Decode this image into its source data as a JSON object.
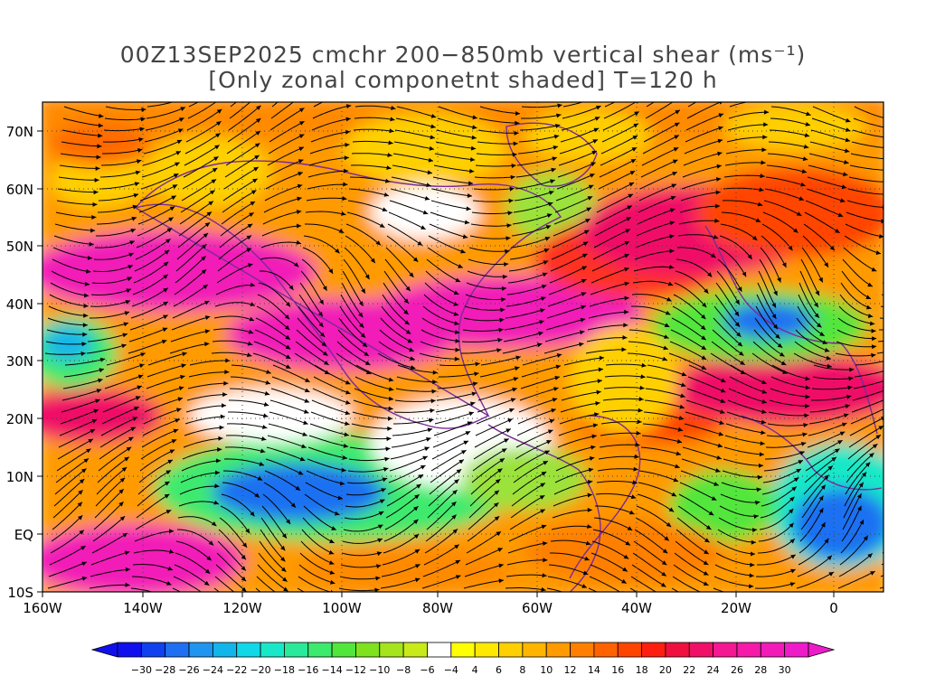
{
  "map": {
    "title_line1": "00Z13SEP2025 cmchr 200−850mb vertical shear (ms⁻¹)",
    "title_line2": "[Only zonal componetnt shaded] T=120 h",
    "lat_labels": [
      "70N",
      "60N",
      "50N",
      "40N",
      "30N",
      "20N",
      "10N",
      "EQ",
      "10S"
    ],
    "lon_labels": [
      "160W",
      "140W",
      "120W",
      "100W",
      "80W",
      "60W",
      "40W",
      "20W",
      "0"
    ],
    "colorbar_labels": [
      "−30",
      "−28",
      "−26",
      "−24",
      "−22",
      "−20",
      "−18",
      "−16",
      "−14",
      "−12",
      "−10",
      "−8",
      "−6",
      "−4",
      "4",
      "6",
      "8",
      "10",
      "12",
      "14",
      "16",
      "18",
      "20",
      "22",
      "24",
      "26",
      "28",
      "30"
    ],
    "colorbar_colors": [
      "#1010ee",
      "#1040f0",
      "#1f6ff2",
      "#1f95f0",
      "#12b5ea",
      "#10d8e8",
      "#18e8c8",
      "#28ea9a",
      "#3cea6e",
      "#52e63c",
      "#7ee21e",
      "#a6e41c",
      "#c8ea18",
      "#ffffff",
      "#ffff00",
      "#ffe800",
      "#ffcf00",
      "#ffb400",
      "#ff9a00",
      "#ff7f00",
      "#ff6200",
      "#ff4400",
      "#ff1f10",
      "#f01040",
      "#f01068",
      "#f41892",
      "#f51aa8",
      "#f21ab8",
      "#ee1cc8"
    ],
    "colors": {
      "continent_outline": "#7a2a9a",
      "streamline": "#000000",
      "grid": "#666666"
    }
  }
}
